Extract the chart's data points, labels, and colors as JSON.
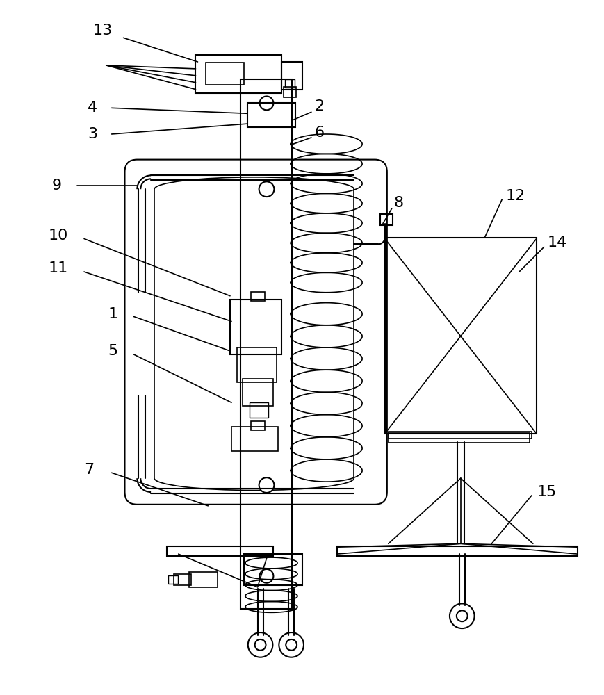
{
  "bg_color": "#ffffff",
  "line_color": "#000000",
  "line_width": 1.5,
  "fig_width": 8.7,
  "fig_height": 10.0
}
